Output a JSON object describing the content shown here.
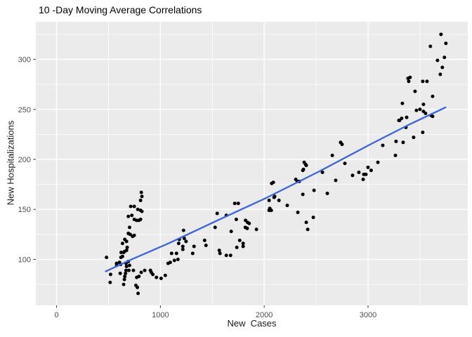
{
  "chart_data": {
    "type": "scatter",
    "title": "10 -Day Moving Average Correlations",
    "xlabel": "New  Cases",
    "ylabel": "New Hospitalizations",
    "x_ticks": [
      0,
      1000,
      2000,
      3000
    ],
    "y_ticks": [
      100,
      150,
      200,
      250,
      300
    ],
    "xlim": [
      -200,
      3961
    ],
    "ylim": [
      54,
      337.6
    ],
    "grid": {
      "major_x": [
        0,
        1000,
        2000,
        3000
      ],
      "minor_x": [
        500,
        1500,
        2500,
        3500
      ],
      "major_y": [
        100,
        150,
        200,
        250,
        300
      ],
      "minor_y": [
        75,
        125,
        175,
        225,
        275,
        325
      ]
    },
    "legend": "none",
    "colors": {
      "panel_bg": "#EBEBEB",
      "grid": "#FFFFFF",
      "point": "#000000",
      "trend_line": "#3B64DE",
      "tick_mark": "#333333",
      "tick_label": "#4d4d4d",
      "title": "#000000"
    },
    "trend_line": [
      [
        473,
        88
      ],
      [
        700,
        99
      ],
      [
        1078,
        116
      ],
      [
        1550,
        139
      ],
      [
        2010,
        161
      ],
      [
        2530,
        188
      ],
      [
        3040,
        216
      ],
      [
        3400,
        235
      ],
      [
        3747,
        252
      ]
    ],
    "points": [
      [
        481,
        102
      ],
      [
        520,
        85
      ],
      [
        516,
        77
      ],
      [
        579,
        94
      ],
      [
        606,
        97
      ],
      [
        620,
        102
      ],
      [
        622,
        107
      ],
      [
        635,
        103
      ],
      [
        656,
        108
      ],
      [
        674,
        109
      ],
      [
        613,
        86
      ],
      [
        646,
        75
      ],
      [
        578,
        96
      ],
      [
        616,
        95
      ],
      [
        669,
        96
      ],
      [
        674,
        93
      ],
      [
        669,
        89
      ],
      [
        664,
        86
      ],
      [
        657,
        83
      ],
      [
        653,
        80
      ],
      [
        691,
        98
      ],
      [
        703,
        94
      ],
      [
        696,
        89
      ],
      [
        740,
        89
      ],
      [
        772,
        82
      ],
      [
        793,
        83
      ],
      [
        764,
        74
      ],
      [
        778,
        72
      ],
      [
        785,
        66
      ],
      [
        815,
        87
      ],
      [
        849,
        89
      ],
      [
        904,
        89
      ],
      [
        912,
        87
      ],
      [
        927,
        85
      ],
      [
        962,
        82
      ],
      [
        1007,
        81
      ],
      [
        1047,
        84
      ],
      [
        816,
        167
      ],
      [
        822,
        163
      ],
      [
        809,
        159
      ],
      [
        714,
        153
      ],
      [
        748,
        153
      ],
      [
        782,
        150
      ],
      [
        809,
        149
      ],
      [
        822,
        148
      ],
      [
        691,
        143
      ],
      [
        725,
        144
      ],
      [
        748,
        140
      ],
      [
        770,
        139
      ],
      [
        793,
        139
      ],
      [
        809,
        140
      ],
      [
        703,
        132
      ],
      [
        691,
        126
      ],
      [
        709,
        125
      ],
      [
        732,
        123
      ],
      [
        748,
        124
      ],
      [
        657,
        120
      ],
      [
        674,
        118
      ],
      [
        635,
        116
      ],
      [
        680,
        112
      ],
      [
        646,
        107
      ],
      [
        1074,
        96
      ],
      [
        1095,
        97
      ],
      [
        1108,
        106
      ],
      [
        1135,
        99
      ],
      [
        1155,
        106
      ],
      [
        1169,
        100
      ],
      [
        1176,
        116
      ],
      [
        1182,
        120
      ],
      [
        1216,
        113
      ],
      [
        1216,
        110
      ],
      [
        1223,
        129
      ],
      [
        1230,
        121
      ],
      [
        1247,
        118
      ],
      [
        1311,
        106
      ],
      [
        1324,
        113
      ],
      [
        1426,
        119
      ],
      [
        1439,
        114
      ],
      [
        1527,
        132
      ],
      [
        1547,
        146
      ],
      [
        1567,
        109
      ],
      [
        1574,
        106
      ],
      [
        1635,
        144
      ],
      [
        1635,
        104
      ],
      [
        1676,
        104
      ],
      [
        1682,
        128
      ],
      [
        1716,
        156
      ],
      [
        1750,
        156
      ],
      [
        1731,
        140
      ],
      [
        1820,
        139
      ],
      [
        1840,
        137
      ],
      [
        1855,
        136
      ],
      [
        1818,
        132
      ],
      [
        1836,
        131
      ],
      [
        1925,
        130
      ],
      [
        1764,
        119
      ],
      [
        1797,
        116
      ],
      [
        1797,
        113
      ],
      [
        1736,
        112
      ],
      [
        2047,
        159
      ],
      [
        2072,
        176
      ],
      [
        2088,
        177
      ],
      [
        2095,
        162
      ],
      [
        2142,
        159
      ],
      [
        2047,
        149
      ],
      [
        2054,
        151
      ],
      [
        2068,
        149
      ],
      [
        2101,
        163
      ],
      [
        2222,
        154
      ],
      [
        2304,
        180
      ],
      [
        2318,
        178
      ],
      [
        2338,
        178
      ],
      [
        2324,
        147
      ],
      [
        2372,
        165
      ],
      [
        2385,
        197
      ],
      [
        2399,
        195
      ],
      [
        2405,
        194
      ],
      [
        2378,
        190
      ],
      [
        2372,
        189
      ],
      [
        2405,
        137
      ],
      [
        2419,
        130
      ],
      [
        2473,
        142
      ],
      [
        2480,
        169
      ],
      [
        2561,
        187
      ],
      [
        2608,
        166
      ],
      [
        2656,
        204
      ],
      [
        2689,
        179
      ],
      [
        2736,
        217
      ],
      [
        2750,
        215
      ],
      [
        2777,
        196
      ],
      [
        2851,
        184
      ],
      [
        2912,
        187
      ],
      [
        2959,
        185
      ],
      [
        2953,
        180
      ],
      [
        2980,
        185
      ],
      [
        3000,
        192
      ],
      [
        3030,
        189
      ],
      [
        3095,
        197
      ],
      [
        3142,
        214
      ],
      [
        3264,
        204
      ],
      [
        3270,
        218
      ],
      [
        3338,
        217
      ],
      [
        3297,
        239
      ],
      [
        3304,
        239
      ],
      [
        3324,
        241
      ],
      [
        3372,
        242
      ],
      [
        3331,
        256
      ],
      [
        3365,
        232
      ],
      [
        3439,
        222
      ],
      [
        3453,
        268
      ],
      [
        3466,
        249
      ],
      [
        3500,
        250
      ],
      [
        3527,
        227
      ],
      [
        3527,
        278
      ],
      [
        3534,
        255
      ],
      [
        3534,
        248
      ],
      [
        3554,
        246
      ],
      [
        3568,
        278
      ],
      [
        3385,
        281
      ],
      [
        3405,
        282
      ],
      [
        3392,
        278
      ],
      [
        3601,
        313
      ],
      [
        3608,
        244
      ],
      [
        3622,
        243
      ],
      [
        3622,
        263
      ],
      [
        3669,
        299
      ],
      [
        3696,
        285
      ],
      [
        3703,
        325
      ],
      [
        3716,
        292
      ],
      [
        3736,
        302
      ],
      [
        3750,
        316
      ]
    ]
  }
}
